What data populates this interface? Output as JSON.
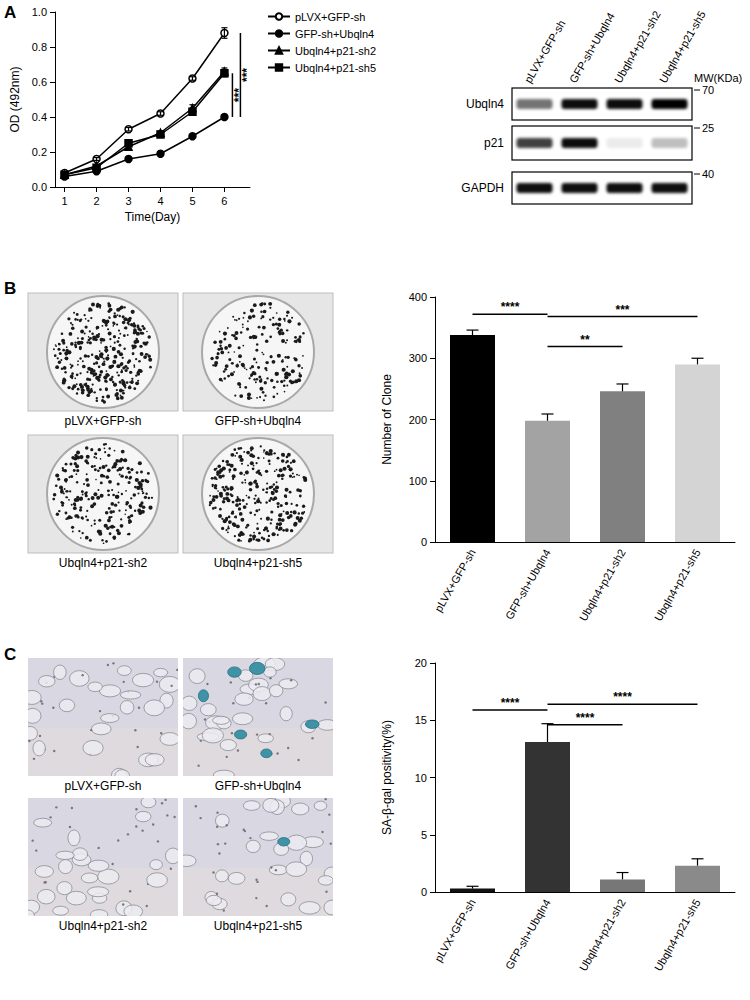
{
  "panels": [
    "A",
    "B",
    "C"
  ],
  "chart_data": [
    {
      "type": "line",
      "x": [
        1,
        2,
        3,
        4,
        5,
        6
      ],
      "x_label": "Time(Day)",
      "y_label": "OD (492nm)",
      "xlim": [
        0.7,
        6.8
      ],
      "xticks": [
        1,
        2,
        3,
        4,
        5,
        6
      ],
      "ylim": [
        0,
        1
      ],
      "yticks": [
        {
          "value": 0,
          "label": "0.0"
        },
        0.2,
        0.4,
        0.6,
        0.8,
        {
          "value": 1,
          "label": "1.0"
        }
      ],
      "grid": false,
      "legend": "upper right",
      "series": [
        {
          "name": "pLVX+GFP-sh",
          "color": "#000000",
          "marker": "circle_open",
          "values": [
            0.08,
            0.16,
            0.33,
            0.42,
            0.62,
            0.88
          ],
          "errors": [
            0.005,
            0.008,
            0.01,
            0.01,
            0.01,
            0.03
          ]
        },
        {
          "name": "GFP-sh+Ubqln4",
          "color": "#000000",
          "marker": "circle",
          "values": [
            0.06,
            0.09,
            0.16,
            0.19,
            0.29,
            0.4
          ],
          "errors": [
            0.005,
            0.005,
            0.008,
            0.008,
            0.008,
            0.01
          ]
        },
        {
          "name": "Ubqln4+p21-sh2",
          "color": "#000000",
          "marker": "triangle",
          "values": [
            0.07,
            0.12,
            0.23,
            0.31,
            0.45,
            0.66
          ],
          "errors": [
            0.005,
            0.008,
            0.01,
            0.01,
            0.02,
            0.02
          ]
        },
        {
          "name": "Ubqln4+p21-sh5",
          "color": "#000000",
          "marker": "square",
          "values": [
            0.07,
            0.11,
            0.25,
            0.3,
            0.43,
            0.65
          ],
          "errors": [
            0.005,
            0.008,
            0.01,
            0.01,
            0.02,
            0.02
          ]
        }
      ],
      "annotations": [
        {
          "x": 6.25,
          "y1": 0.4,
          "y2": 0.65,
          "label": "***"
        },
        {
          "x": 6.5,
          "y1": 0.4,
          "y2": 0.88,
          "label": "***"
        }
      ]
    },
    {
      "type": "bar",
      "categories": [
        "pLVX+GFP-sh",
        "GFP-sh+Ubqln4",
        "Ubqln4+p21-sh2",
        "Ubqln4+p21-sh5"
      ],
      "values": [
        338,
        198,
        246,
        290
      ],
      "errors": [
        8,
        11,
        12,
        10
      ],
      "colors": [
        "#000000",
        "#a3a3a3",
        "#808080",
        "#d4d4d4"
      ],
      "y_label": "Number of Clone",
      "ylim": [
        0,
        400
      ],
      "yticks": [
        0,
        100,
        200,
        300,
        400
      ],
      "grid": false,
      "annotations": [
        {
          "from": 0,
          "to": 1,
          "y": 372,
          "label": "****"
        },
        {
          "from": 1,
          "to": 3,
          "y": 368,
          "label": "***"
        },
        {
          "from": 1,
          "to": 2,
          "y": 319,
          "label": "**"
        }
      ]
    },
    {
      "type": "bar",
      "categories": [
        "pLVX+GFP-sh",
        "GFP-sh+Ubqln4",
        "Ubqln4+p21-sh2",
        "Ubqln4+p21-sh5"
      ],
      "values": [
        0.3,
        13.1,
        1.1,
        2.3
      ],
      "errors": [
        0.2,
        1.6,
        0.6,
        0.6
      ],
      "colors": [
        "#111111",
        "#333333",
        "#777777",
        "#8a8a8a"
      ],
      "y_label": "SA-β-gal positivity(%)",
      "ylim": [
        0,
        20
      ],
      "yticks": [
        0,
        5,
        10,
        15,
        20
      ],
      "grid": false,
      "annotations": [
        {
          "from": 0,
          "to": 1,
          "y": 15.9,
          "label": "****"
        },
        {
          "from": 1,
          "to": 3,
          "y": 16.4,
          "label": "****"
        },
        {
          "from": 1,
          "to": 2,
          "y": 14.6,
          "label": "****"
        }
      ]
    }
  ],
  "blot": {
    "lanes": [
      "pLVX+GFP-sh",
      "GFP-sh+Ubqln4",
      "Ubqln4+p21-sh2",
      "Ubqln4+p21-sh5"
    ],
    "mw_label": "MW(KDa)",
    "rows": [
      {
        "name": "Ubqln4",
        "marker": 70,
        "intensity": [
          0.55,
          0.95,
          0.95,
          1.0
        ]
      },
      {
        "name": "p21",
        "marker": 25,
        "intensity": [
          0.75,
          0.95,
          0.08,
          0.25
        ]
      },
      {
        "name": "GAPDH",
        "marker": 40,
        "intensity": [
          0.95,
          0.95,
          0.95,
          0.95
        ]
      }
    ]
  },
  "colony_images": {
    "captions": [
      "pLVX+GFP-sh",
      "GFP-sh+Ubqln4",
      "Ubqln4+p21-sh2",
      "Ubqln4+p21-sh5"
    ]
  },
  "cell_images": {
    "captions": [
      "pLVX+GFP-sh",
      "GFP-sh+Ubqln4",
      "Ubqln4+p21-sh2",
      "Ubqln4+p21-sh5"
    ]
  }
}
